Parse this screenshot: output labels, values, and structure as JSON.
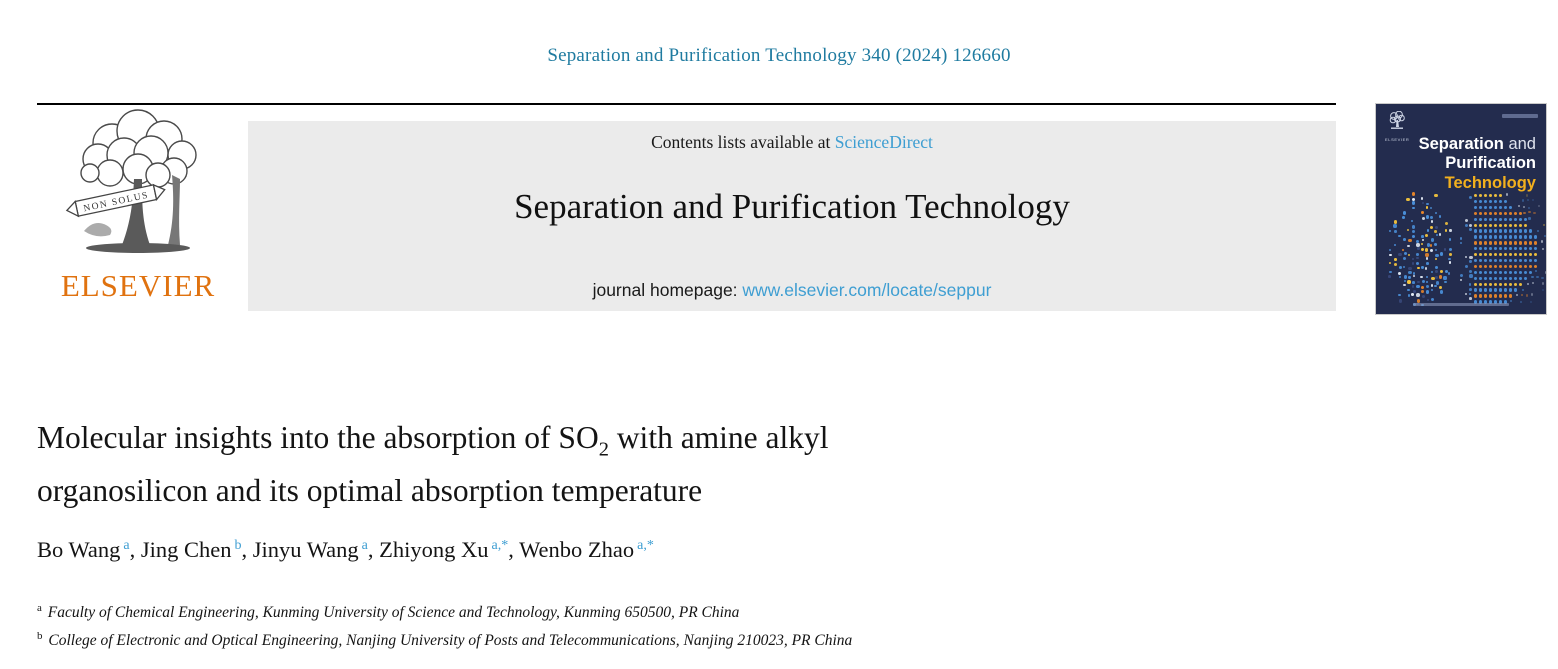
{
  "header": {
    "citation": "Separation and Purification Technology 340 (2024) 126660"
  },
  "banner": {
    "contents_prefix": "Contents lists available at ",
    "contents_link": "ScienceDirect",
    "journal_title": "Separation and Purification Technology",
    "homepage_prefix": "journal homepage: ",
    "homepage_link": "www.elsevier.com/locate/seppur"
  },
  "publisher": {
    "wordmark": "ELSEVIER",
    "motto": "NON SOLUS"
  },
  "cover": {
    "line1_bold": "Separation",
    "line1_rest": " and",
    "line2": "Purification",
    "line3": "Technology",
    "mini_wordmark": "ELSEVIER"
  },
  "article": {
    "title": {
      "line1_before_sub": "Molecular insights into the absorption of SO",
      "subscript": "2",
      "line1_after_sub": " with amine alkyl",
      "line2": "organosilicon and its optimal absorption temperature"
    }
  },
  "authors": [
    {
      "name": "Bo Wang",
      "sup": "a"
    },
    {
      "name": "Jing Chen",
      "sup": "b"
    },
    {
      "name": "Jinyu Wang",
      "sup": "a"
    },
    {
      "name": "Zhiyong Xu",
      "sup": "a,*"
    },
    {
      "name": "Wenbo Zhao",
      "sup": "a,*"
    }
  ],
  "author_separator": ", ",
  "affiliations": [
    {
      "sup": "a",
      "text": "Faculty of Chemical Engineering, Kunming University of Science and Technology, Kunming 650500, PR China"
    },
    {
      "sup": "b",
      "text": "College of Electronic and Optical Engineering, Nanjing University of Posts and Telecommunications, Nanjing 210023, PR China"
    }
  ],
  "colors": {
    "citation-teal": "#1f7ba0",
    "link-blue": "#3e9ed2",
    "elsevier-orange": "#e0720f",
    "banner-gray": "#ebebeb",
    "cover-navy": "#232c4e",
    "cover-gold": "#f2b01e"
  }
}
